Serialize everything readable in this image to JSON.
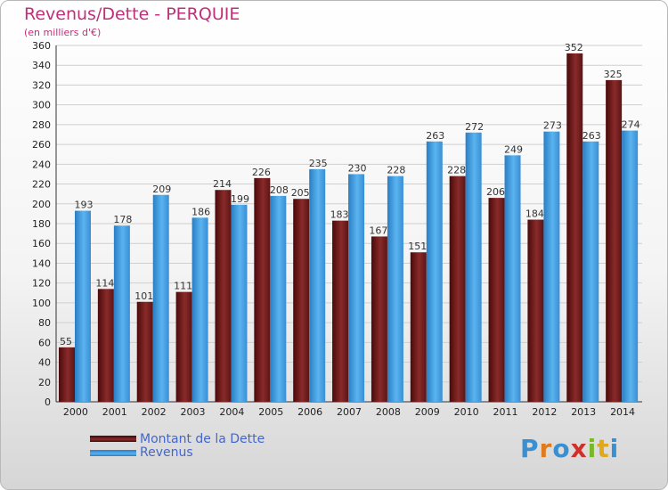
{
  "chart_data": {
    "type": "bar",
    "title": "Revenus/Dette - PERQUIE",
    "subtitle": "(en milliers d'€)",
    "categories": [
      "2000",
      "2001",
      "2002",
      "2003",
      "2004",
      "2005",
      "2006",
      "2007",
      "2008",
      "2009",
      "2010",
      "2011",
      "2012",
      "2013",
      "2014"
    ],
    "series": [
      {
        "name": "Montant de la Dette",
        "values": [
          55,
          114,
          101,
          111,
          214,
          226,
          205,
          183,
          167,
          151,
          228,
          206,
          184,
          352,
          325
        ],
        "color": "#7a1f1f"
      },
      {
        "name": "Revenus",
        "values": [
          193,
          178,
          209,
          186,
          199,
          208,
          235,
          230,
          228,
          263,
          272,
          249,
          273,
          263,
          274
        ],
        "color": "#4499dd"
      }
    ],
    "ylim": [
      0,
      360
    ],
    "ytick_step": 20,
    "grid": true,
    "legend_placement": "bottom-left"
  },
  "logo": {
    "letters": [
      "P",
      "r",
      "o",
      "x",
      "i",
      "t",
      "i"
    ],
    "colors": [
      "#3a8fd0",
      "#e07a1a",
      "#3a8fd0",
      "#d0302a",
      "#7ab829",
      "#e0a81a",
      "#3a8fd0"
    ]
  }
}
